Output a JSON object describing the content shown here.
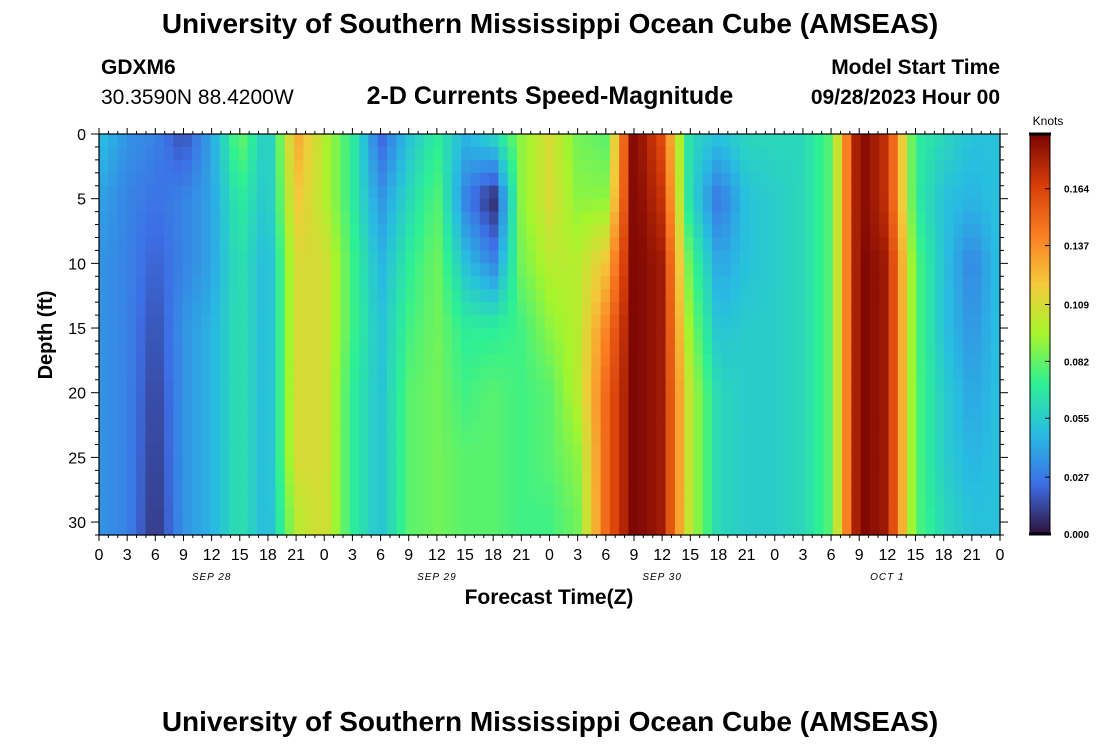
{
  "header": {
    "title": "University of Southern Mississippi Ocean Cube (AMSEAS)",
    "station_id": "GDXM6",
    "station_coords": "30.3590N  88.4200W",
    "chart_title": "2-D Currents Speed-Magnitude",
    "model_start_label": "Model Start Time",
    "model_start_value": "09/28/2023 Hour 00"
  },
  "footer": {
    "title": "University of Southern Mississippi Ocean Cube (AMSEAS)"
  },
  "colors": {
    "scale": [
      "#30123b",
      "#3d6fe6",
      "#28bce2",
      "#2df095",
      "#a5f52c",
      "#f4c93a",
      "#fb7c22",
      "#d63c08",
      "#7a0403"
    ]
  },
  "chart_data": {
    "type": "heatmap",
    "title": "2-D Currents Speed-Magnitude",
    "xlabel": "Forecast Time(Z)",
    "ylabel": "Depth (ft)",
    "x_tick_labels": [
      "0",
      "3",
      "6",
      "9",
      "12",
      "15",
      "18",
      "21",
      "0",
      "3",
      "6",
      "9",
      "12",
      "15",
      "18",
      "21",
      "0",
      "3",
      "6",
      "9",
      "12",
      "15",
      "18",
      "21",
      "0",
      "3",
      "6",
      "9",
      "12",
      "15",
      "18",
      "21",
      "0"
    ],
    "date_labels": [
      {
        "label": "SEP 28",
        "tick_index": 4
      },
      {
        "label": "SEP 29",
        "tick_index": 12
      },
      {
        "label": "SEP 30",
        "tick_index": 20
      },
      {
        "label": "OCT 1",
        "tick_index": 28
      }
    ],
    "y_tick_labels": [
      "0",
      "5",
      "10",
      "15",
      "20",
      "25",
      "30"
    ],
    "ylim": [
      0,
      31
    ],
    "y_inverted": true,
    "x_hours": [
      0,
      3,
      6,
      9,
      12,
      15,
      18,
      21,
      24,
      27,
      30,
      33,
      36,
      39,
      42,
      45,
      48,
      51,
      54,
      57,
      60,
      63,
      66,
      69,
      72,
      75,
      78,
      81,
      84,
      87,
      90,
      93,
      96
    ],
    "colorbar": {
      "label": "Knots",
      "ticks": [
        "0.164",
        "0.137",
        "0.109",
        "0.082",
        "0.055",
        "0.027",
        "0.000"
      ],
      "range": [
        0.0,
        0.19
      ]
    },
    "depth_rows": [
      {
        "depth_ft": 0,
        "speed_knots": [
          0.05,
          0.035,
          0.03,
          0.015,
          0.04,
          0.085,
          0.05,
          0.13,
          0.1,
          0.07,
          0.02,
          0.05,
          0.07,
          0.045,
          0.06,
          0.09,
          0.11,
          0.085,
          0.08,
          0.19,
          0.16,
          0.06,
          0.05,
          0.06,
          0.06,
          0.06,
          0.08,
          0.19,
          0.17,
          0.07,
          0.06,
          0.05,
          0.05
        ]
      },
      {
        "depth_ft": 5,
        "speed_knots": [
          0.04,
          0.03,
          0.025,
          0.03,
          0.04,
          0.07,
          0.05,
          0.12,
          0.1,
          0.07,
          0.035,
          0.06,
          0.08,
          0.03,
          0.005,
          0.09,
          0.11,
          0.09,
          0.09,
          0.19,
          0.17,
          0.06,
          0.025,
          0.05,
          0.055,
          0.06,
          0.08,
          0.19,
          0.17,
          0.07,
          0.05,
          0.045,
          0.05
        ]
      },
      {
        "depth_ft": 10,
        "speed_knots": [
          0.035,
          0.03,
          0.02,
          0.03,
          0.04,
          0.065,
          0.045,
          0.11,
          0.11,
          0.075,
          0.045,
          0.07,
          0.085,
          0.05,
          0.03,
          0.085,
          0.1,
          0.1,
          0.12,
          0.19,
          0.18,
          0.08,
          0.04,
          0.05,
          0.055,
          0.06,
          0.08,
          0.19,
          0.18,
          0.08,
          0.05,
          0.03,
          0.05
        ]
      },
      {
        "depth_ft": 15,
        "speed_knots": [
          0.035,
          0.03,
          0.015,
          0.035,
          0.045,
          0.065,
          0.045,
          0.11,
          0.11,
          0.075,
          0.05,
          0.075,
          0.085,
          0.07,
          0.07,
          0.075,
          0.09,
          0.1,
          0.14,
          0.19,
          0.18,
          0.09,
          0.05,
          0.055,
          0.055,
          0.06,
          0.08,
          0.19,
          0.18,
          0.08,
          0.05,
          0.035,
          0.05
        ]
      },
      {
        "depth_ft": 20,
        "speed_knots": [
          0.035,
          0.03,
          0.012,
          0.035,
          0.045,
          0.065,
          0.045,
          0.11,
          0.11,
          0.07,
          0.05,
          0.08,
          0.085,
          0.075,
          0.08,
          0.075,
          0.08,
          0.1,
          0.15,
          0.19,
          0.18,
          0.1,
          0.06,
          0.055,
          0.055,
          0.06,
          0.08,
          0.19,
          0.18,
          0.08,
          0.055,
          0.04,
          0.05
        ]
      },
      {
        "depth_ft": 25,
        "speed_knots": [
          0.035,
          0.03,
          0.01,
          0.035,
          0.045,
          0.065,
          0.045,
          0.11,
          0.11,
          0.07,
          0.05,
          0.08,
          0.085,
          0.08,
          0.08,
          0.075,
          0.08,
          0.09,
          0.15,
          0.19,
          0.18,
          0.1,
          0.06,
          0.055,
          0.055,
          0.06,
          0.08,
          0.19,
          0.18,
          0.08,
          0.055,
          0.045,
          0.05
        ]
      },
      {
        "depth_ft": 30,
        "speed_knots": [
          0.035,
          0.03,
          0.008,
          0.035,
          0.045,
          0.065,
          0.045,
          0.1,
          0.11,
          0.07,
          0.05,
          0.08,
          0.085,
          0.08,
          0.08,
          0.075,
          0.075,
          0.085,
          0.15,
          0.19,
          0.18,
          0.1,
          0.06,
          0.055,
          0.055,
          0.06,
          0.08,
          0.19,
          0.18,
          0.08,
          0.06,
          0.05,
          0.05
        ]
      }
    ]
  }
}
